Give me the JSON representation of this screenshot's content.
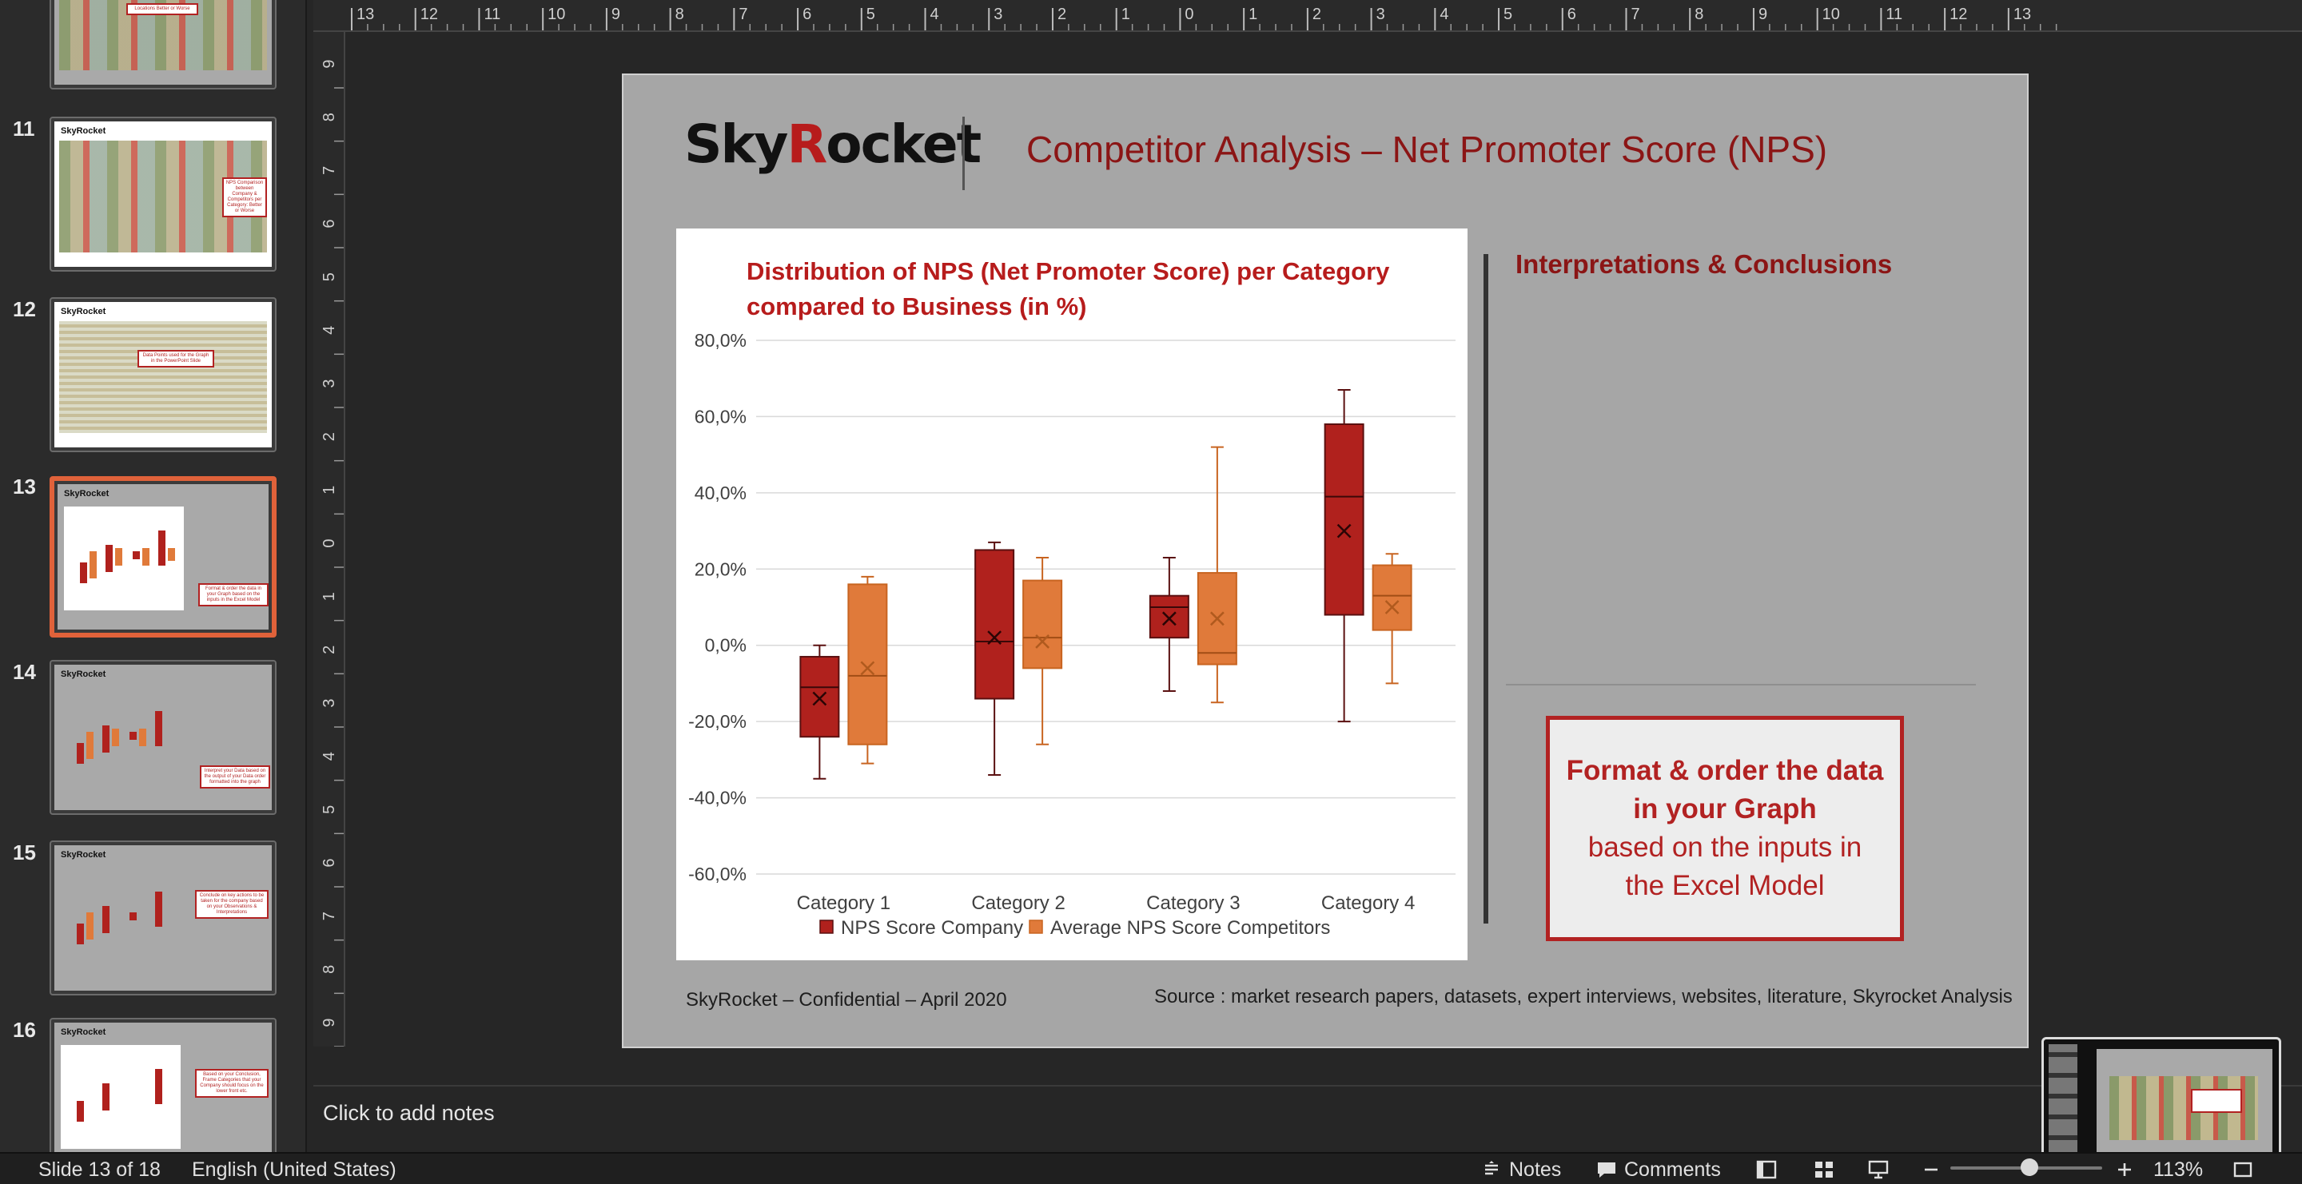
{
  "thumbnails": [
    {
      "number": "",
      "callout": "Locations Better or Worse"
    },
    {
      "number": "11",
      "callout": "NPS Comparison between Company & Competitors per Category: Better or Worse"
    },
    {
      "number": "12",
      "callout": "Data Points used for the Graph in the PowerPoint Slide"
    },
    {
      "number": "13",
      "callout": "Format & order the data in your Graph based on the inputs in the Excel Model"
    },
    {
      "number": "14",
      "callout": "Interpret your Data based on the output of your Data order formatted into the graph"
    },
    {
      "number": "15",
      "callout": "Conclude on key actions to be taken for the company based on your Observations & Interpretations"
    },
    {
      "number": "16",
      "callout": "Based on your Conclusion, Frame Categories that your Company should focus on the lower front etc."
    }
  ],
  "ruler": {
    "top_labels": [
      "13",
      "12",
      "11",
      "10",
      "9",
      "8",
      "7",
      "6",
      "5",
      "4",
      "3",
      "2",
      "1",
      "0",
      "1",
      "2",
      "3",
      "4",
      "5",
      "6",
      "7",
      "8",
      "9",
      "10",
      "11",
      "12",
      "13"
    ],
    "left_labels": [
      "9",
      "8",
      "7",
      "6",
      "5",
      "4",
      "3",
      "2",
      "1",
      "0",
      "1",
      "2",
      "3",
      "4",
      "5",
      "6",
      "7",
      "8",
      "9"
    ]
  },
  "slide": {
    "logo_a": "Sky",
    "logo_b": "R",
    "logo_c": "ocket",
    "title": "Competitor Analysis – Net Promoter Score (NPS)",
    "chart_title": "Distribution of NPS (Net Promoter Score) per Category compared to Business (in %)",
    "interp_title": "Interpretations & Conclusions",
    "callout_line1": "Format & order the data",
    "callout_line2": "in your Graph",
    "callout_line3": "based on the inputs in",
    "callout_line4": "the Excel Model",
    "footer_left": "SkyRocket – Confidential – April 2020",
    "footer_right": "Source : market research papers, datasets, expert interviews, websites, literature, Skyrocket Analysis"
  },
  "chart_data": {
    "type": "boxplot",
    "categories": [
      "Category 1",
      "Category 2",
      "Category 3",
      "Category 4"
    ],
    "ylim": [
      -60,
      80
    ],
    "yticks": [
      "80,0%",
      "60,0%",
      "40,0%",
      "20,0%",
      "0,0%",
      "-20,0%",
      "-40,0%",
      "-60,0%"
    ],
    "ytick_values": [
      80,
      60,
      40,
      20,
      0,
      -20,
      -40,
      -60
    ],
    "grid": true,
    "legend_position": "bottom",
    "series": [
      {
        "name": "NPS Score Company",
        "color": "#b0211d",
        "boxes": [
          {
            "min": -35,
            "q1": -24,
            "median": -11,
            "q3": -3,
            "max": 0,
            "mean": -14
          },
          {
            "min": -34,
            "q1": -14,
            "median": 1,
            "q3": 25,
            "max": 27,
            "mean": 2
          },
          {
            "min": -12,
            "q1": 2,
            "median": 10,
            "q3": 13,
            "max": 23,
            "mean": 7
          },
          {
            "min": -20,
            "q1": 8,
            "median": 39,
            "q3": 58,
            "max": 67,
            "mean": 30
          }
        ]
      },
      {
        "name": "Average NPS Score Competitors",
        "color": "#e07a3a",
        "boxes": [
          {
            "min": -31,
            "q1": -26,
            "median": -8,
            "q3": 16,
            "max": 18,
            "mean": -6
          },
          {
            "min": -26,
            "q1": -6,
            "median": 2,
            "q3": 17,
            "max": 23,
            "mean": 1
          },
          {
            "min": -15,
            "q1": -5,
            "median": -2,
            "q3": 19,
            "max": 52,
            "mean": 7
          },
          {
            "min": -10,
            "q1": 4,
            "median": 13,
            "q3": 21,
            "max": 24,
            "mean": 10
          }
        ]
      }
    ]
  },
  "notes": {
    "placeholder": "Click to add notes"
  },
  "status": {
    "slide_info": "Slide 13 of 18",
    "language": "English (United States)",
    "notes_label": "Notes",
    "comments_label": "Comments",
    "zoom": "113%"
  }
}
